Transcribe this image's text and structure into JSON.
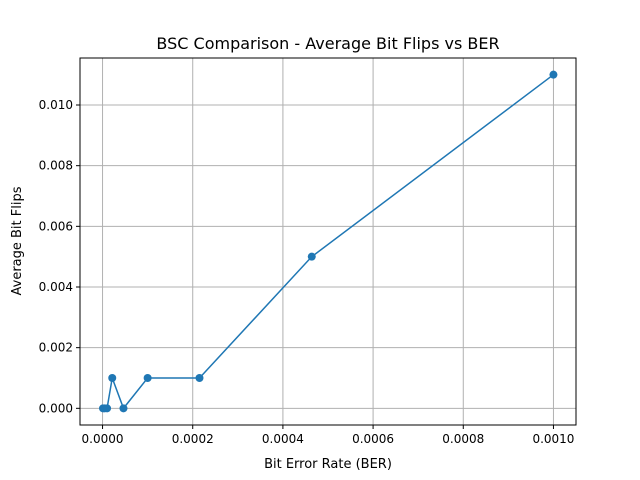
{
  "chart_data": {
    "type": "line",
    "title": "BSC Comparison - Average Bit Flips vs BER",
    "xlabel": "Bit Error Rate (BER)",
    "ylabel": "Average Bit Flips",
    "xlim": [
      -5e-05,
      0.00105
    ],
    "ylim": [
      -0.00055,
      0.01155
    ],
    "xticks": [
      0,
      0.0002,
      0.0004,
      0.0006,
      0.0008,
      0.001
    ],
    "xtick_labels": [
      "0.0000",
      "0.0002",
      "0.0004",
      "0.0006",
      "0.0008",
      "0.0010"
    ],
    "yticks": [
      0,
      0.002,
      0.004,
      0.006,
      0.008,
      0.01
    ],
    "ytick_labels": [
      "0.000",
      "0.002",
      "0.004",
      "0.006",
      "0.008",
      "0.010"
    ],
    "grid": true,
    "series": [
      {
        "color": "#1f77b4",
        "marker": "circle",
        "x": [
          1e-06,
          4.6e-06,
          1e-05,
          2.15e-05,
          4.64e-05,
          0.0001,
          0.000215,
          0.000464,
          0.001
        ],
        "y": [
          0,
          0,
          0,
          0.001,
          0,
          0.001,
          0.001,
          0.005,
          0.011
        ]
      }
    ]
  }
}
